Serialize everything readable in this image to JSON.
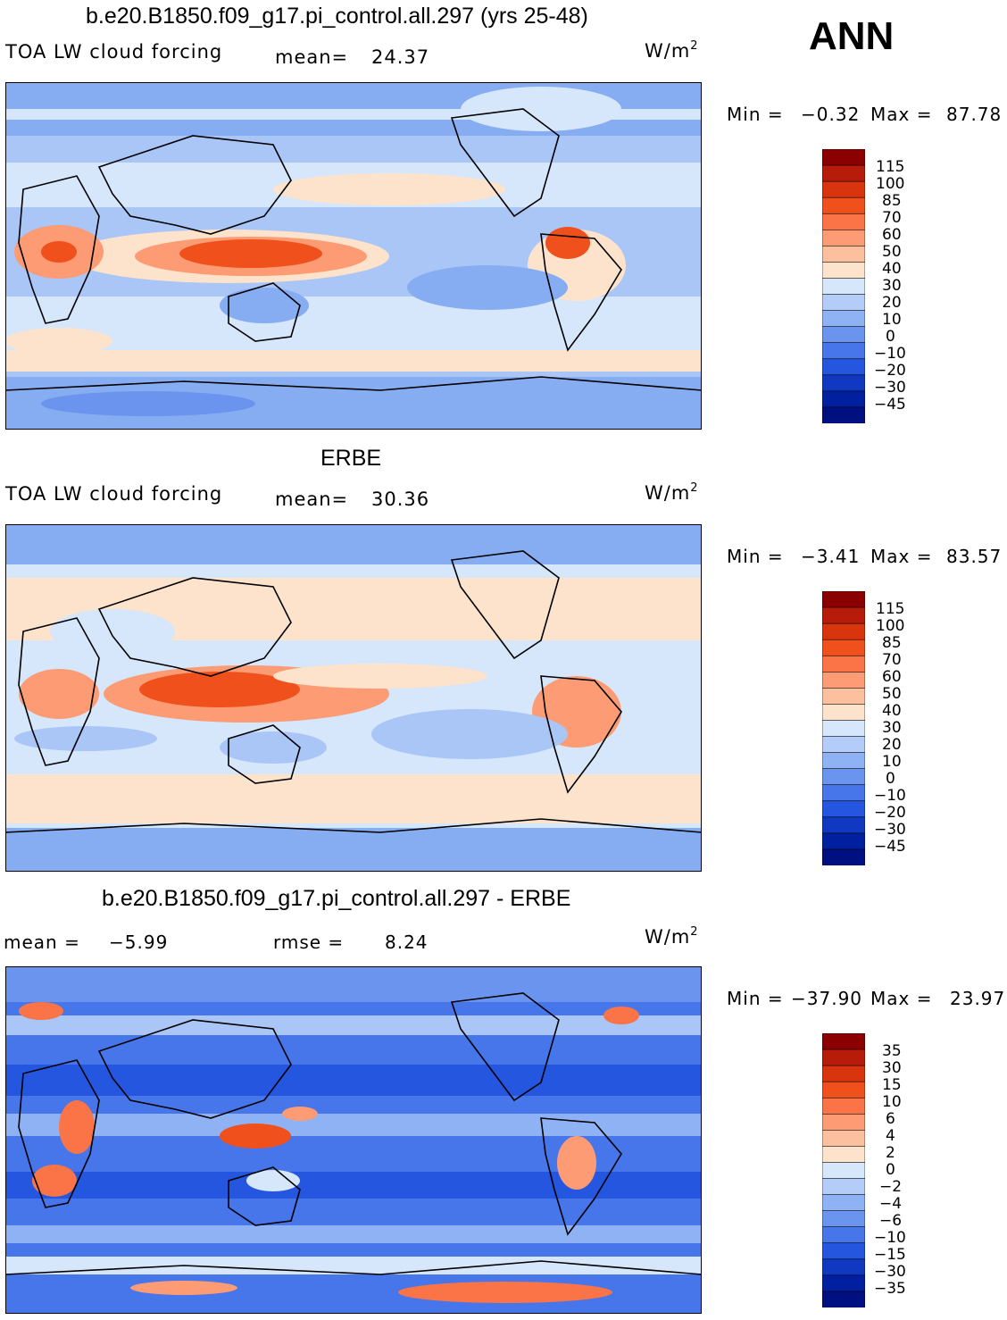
{
  "annual_label": "ANN",
  "panels": [
    {
      "title": "b.e20.B1850.f09_g17.pi_control.all.297 (yrs 25-48)",
      "variable": "TOA LW cloud forcing",
      "stat1_label": "mean=",
      "stat1_value": "24.37",
      "stat2_label": "",
      "stat2_value": "",
      "units_base": "W/m",
      "units_exp": "2",
      "min_label": "Min =",
      "min_value": "−0.32",
      "max_label": "Max =",
      "max_value": "87.78",
      "colorbar_labels": [
        "115",
        "100",
        "85",
        "70",
        "60",
        "50",
        "40",
        "30",
        "20",
        "10",
        "0",
        "−10",
        "−20",
        "−30",
        "−45"
      ],
      "colorbar_colors": [
        "#8b0000",
        "#b71c0a",
        "#d8350f",
        "#f0501c",
        "#fb7447",
        "#fc9b74",
        "#fdc09f",
        "#fde3cc",
        "#d6e6fb",
        "#b3cdf8",
        "#8fb2f4",
        "#6a94ee",
        "#4676ea",
        "#2456e0",
        "#1038c0",
        "#0020a0",
        "#001080"
      ]
    },
    {
      "title": "ERBE",
      "variable": "TOA LW cloud forcing",
      "stat1_label": "mean=",
      "stat1_value": "30.36",
      "stat2_label": "",
      "stat2_value": "",
      "units_base": "W/m",
      "units_exp": "2",
      "min_label": "Min =",
      "min_value": "−3.41",
      "max_label": "Max =",
      "max_value": "83.57",
      "colorbar_labels": [
        "115",
        "100",
        "85",
        "70",
        "60",
        "50",
        "40",
        "30",
        "20",
        "10",
        "0",
        "−10",
        "−20",
        "−30",
        "−45"
      ],
      "colorbar_colors": [
        "#8b0000",
        "#b71c0a",
        "#d8350f",
        "#f0501c",
        "#fb7447",
        "#fc9b74",
        "#fdc09f",
        "#fde3cc",
        "#d6e6fb",
        "#b3cdf8",
        "#8fb2f4",
        "#6a94ee",
        "#4676ea",
        "#2456e0",
        "#1038c0",
        "#0020a0",
        "#001080"
      ]
    },
    {
      "title": "b.e20.B1850.f09_g17.pi_control.all.297 - ERBE",
      "variable": "",
      "stat1_label": "mean =",
      "stat1_value": "−5.99",
      "stat2_label": "rmse =",
      "stat2_value": "8.24",
      "units_base": "W/m",
      "units_exp": "2",
      "min_label": "Min =",
      "min_value": "−37.90",
      "max_label": "Max =",
      "max_value": "23.97",
      "colorbar_labels": [
        "35",
        "30",
        "15",
        "10",
        "6",
        "4",
        "2",
        "0",
        "−2",
        "−4",
        "−6",
        "−10",
        "−15",
        "−30",
        "−35"
      ],
      "colorbar_colors": [
        "#8b0000",
        "#b71c0a",
        "#d8350f",
        "#f0501c",
        "#fb7447",
        "#fc9b74",
        "#fdc09f",
        "#fde3cc",
        "#d6e6fb",
        "#b3cdf8",
        "#8fb2f4",
        "#6a94ee",
        "#4676ea",
        "#2456e0",
        "#1038c0",
        "#0020a0",
        "#001080"
      ]
    }
  ]
}
